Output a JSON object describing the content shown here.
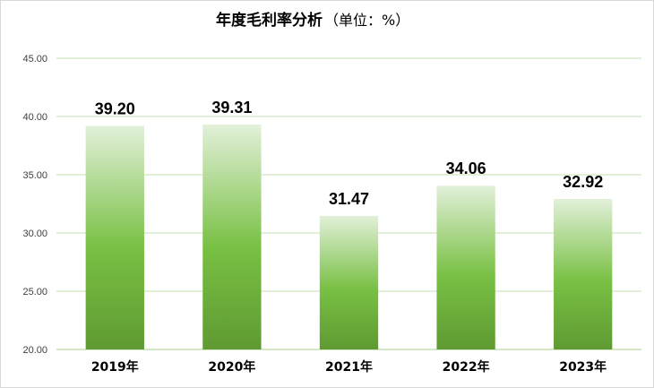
{
  "chart_data": {
    "type": "bar",
    "title": "年度毛利率分析",
    "subtitle": "（单位：%）",
    "categories": [
      "2019年",
      "2020年",
      "2021年",
      "2022年",
      "2023年"
    ],
    "values": [
      39.2,
      39.31,
      31.47,
      34.06,
      32.92
    ],
    "data_labels": [
      "39.20",
      "39.31",
      "31.47",
      "34.06",
      "32.92"
    ],
    "ylim": [
      20,
      45
    ],
    "yticks": [
      "20.00",
      "25.00",
      "30.00",
      "35.00",
      "40.00",
      "45.00"
    ],
    "grid": true,
    "legend": "none",
    "colors": {
      "bar_top": "#e2f0d9",
      "bar_mid": "#78c043",
      "bar_bottom": "#5f9a32",
      "grid": "#c6e0b4"
    }
  }
}
